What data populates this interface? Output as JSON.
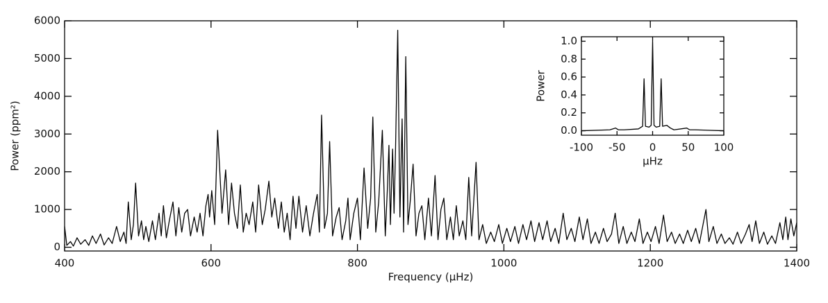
{
  "chart_data": [
    {
      "type": "line",
      "xlabel": "Frequency (μHz)",
      "ylabel": "Power (ppm²)",
      "xlim": [
        400,
        1400
      ],
      "ylim": [
        -100,
        6000
      ],
      "xticks": [
        400,
        600,
        800,
        1000,
        1200,
        1400
      ],
      "yticks": [
        0,
        1000,
        2000,
        3000,
        4000,
        5000,
        6000
      ],
      "color": "#000000",
      "x": [
        400,
        403,
        408,
        412,
        417,
        422,
        428,
        433,
        438,
        443,
        449,
        454,
        460,
        465,
        471,
        476,
        481,
        484,
        487,
        491,
        494,
        497,
        501,
        505,
        508,
        511,
        515,
        520,
        524,
        529,
        532,
        535,
        539,
        543,
        548,
        552,
        556,
        560,
        564,
        568,
        572,
        577,
        581,
        585,
        589,
        593,
        596,
        598,
        601,
        605,
        609,
        612,
        615,
        620,
        624,
        628,
        632,
        636,
        640,
        644,
        648,
        652,
        657,
        661,
        665,
        670,
        674,
        679,
        683,
        687,
        692,
        696,
        700,
        704,
        708,
        712,
        716,
        720,
        725,
        730,
        735,
        740,
        745,
        748,
        751,
        755,
        759,
        762,
        766,
        771,
        775,
        779,
        784,
        787,
        790,
        795,
        800,
        804,
        809,
        814,
        818,
        821,
        825,
        829,
        834,
        838,
        841,
        843,
        845,
        848,
        850,
        852,
        855,
        858,
        861,
        863,
        866,
        869,
        872,
        876,
        880,
        884,
        888,
        892,
        897,
        901,
        906,
        910,
        914,
        918,
        922,
        927,
        931,
        935,
        939,
        944,
        948,
        952,
        956,
        962,
        966,
        971,
        976,
        982,
        987,
        993,
        998,
        1004,
        1009,
        1015,
        1020,
        1026,
        1031,
        1037,
        1042,
        1048,
        1053,
        1059,
        1064,
        1070,
        1075,
        1081,
        1086,
        1092,
        1097,
        1103,
        1108,
        1114,
        1119,
        1125,
        1130,
        1136,
        1141,
        1147,
        1152,
        1157,
        1163,
        1168,
        1174,
        1179,
        1185,
        1190,
        1196,
        1201,
        1207,
        1212,
        1218,
        1223,
        1229,
        1234,
        1240,
        1245,
        1251,
        1256,
        1262,
        1267,
        1272,
        1276,
        1280,
        1286,
        1291,
        1297,
        1302,
        1308,
        1313,
        1319,
        1324,
        1330,
        1335,
        1339,
        1344,
        1349,
        1355,
        1360,
        1366,
        1371,
        1377,
        1381,
        1385,
        1388,
        1392,
        1396,
        1400
      ],
      "values": [
        550,
        50,
        150,
        30,
        250,
        80,
        200,
        50,
        300,
        100,
        350,
        60,
        250,
        100,
        550,
        150,
        400,
        100,
        1200,
        200,
        600,
        1700,
        300,
        700,
        200,
        550,
        150,
        700,
        200,
        900,
        300,
        1100,
        250,
        700,
        1200,
        300,
        1050,
        400,
        900,
        1000,
        300,
        800,
        400,
        900,
        300,
        1100,
        1400,
        800,
        1500,
        600,
        3100,
        2000,
        900,
        2050,
        600,
        1700,
        900,
        500,
        1650,
        400,
        900,
        600,
        1200,
        400,
        1650,
        600,
        1000,
        1750,
        800,
        1300,
        500,
        1200,
        400,
        900,
        200,
        1350,
        500,
        1350,
        400,
        1100,
        300,
        900,
        1400,
        400,
        3500,
        500,
        900,
        2800,
        300,
        800,
        1050,
        200,
        700,
        1300,
        200,
        900,
        1300,
        200,
        2100,
        500,
        1300,
        3450,
        400,
        1200,
        3100,
        300,
        1600,
        2700,
        600,
        2600,
        900,
        2600,
        5750,
        800,
        3400,
        400,
        5050,
        600,
        1200,
        2200,
        300,
        900,
        1100,
        200,
        1300,
        300,
        1900,
        200,
        1000,
        1300,
        200,
        800,
        200,
        1100,
        300,
        700,
        200,
        1850,
        300,
        2250,
        200,
        600,
        100,
        400,
        150,
        600,
        100,
        500,
        150,
        550,
        100,
        600,
        200,
        700,
        150,
        650,
        200,
        700,
        150,
        500,
        100,
        900,
        200,
        500,
        150,
        800,
        200,
        750,
        100,
        400,
        100,
        500,
        150,
        350,
        900,
        100,
        550,
        100,
        400,
        150,
        750,
        100,
        400,
        150,
        550,
        100,
        850,
        150,
        400,
        100,
        350,
        100,
        450,
        150,
        500,
        100,
        600,
        1000,
        150,
        550,
        100,
        350,
        100,
        250,
        80,
        400,
        100,
        350,
        600,
        150,
        700,
        100,
        400,
        80,
        300,
        100,
        650,
        200,
        800,
        200,
        750,
        300,
        650
      ]
    },
    {
      "type": "line",
      "xlabel": "μHz",
      "ylabel": "Power",
      "xlim": [
        -100,
        100
      ],
      "ylim": [
        -0.05,
        1.05
      ],
      "xticks": [
        -100,
        -50,
        0,
        50,
        100
      ],
      "yticks": [
        {
          "value": 0,
          "label": "0.0"
        },
        0.2,
        0.4,
        0.6,
        0.8,
        {
          "value": 1,
          "label": "1.0"
        }
      ],
      "color": "#000000",
      "x": [
        -100,
        -60,
        -52,
        -48,
        -40,
        -20,
        -14,
        -12,
        -10,
        -5,
        -2,
        0,
        2,
        5,
        10,
        12,
        14,
        20,
        25,
        30,
        48,
        52,
        60,
        100
      ],
      "values": [
        0,
        0.01,
        0.03,
        0.01,
        0.01,
        0.02,
        0.05,
        0.58,
        0.05,
        0.04,
        0.06,
        1.0,
        0.06,
        0.04,
        0.05,
        0.58,
        0.05,
        0.06,
        0.03,
        0.01,
        0.03,
        0.01,
        0.01,
        0
      ]
    }
  ]
}
